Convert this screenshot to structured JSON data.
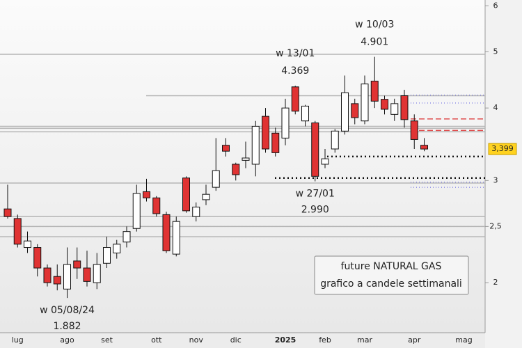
{
  "chart_data": {
    "type": "candlestick",
    "categories": [
      null,
      "lug",
      null,
      null,
      null,
      null,
      "ago",
      null,
      null,
      null,
      "set",
      null,
      null,
      null,
      null,
      "ott",
      null,
      null,
      null,
      "nov",
      null,
      null,
      null,
      "dic",
      null,
      null,
      null,
      null,
      "2025",
      null,
      null,
      null,
      "feb",
      null,
      null,
      null,
      "mar",
      null,
      null,
      null,
      null,
      "apr",
      null,
      null,
      null,
      null,
      "mag"
    ],
    "open": [
      2.68,
      2.58,
      2.3,
      2.3,
      2.12,
      2.05,
      1.95,
      2.18,
      2.12,
      2.0,
      2.16,
      2.25,
      2.35,
      2.48,
      2.87,
      2.8,
      2.62,
      2.24,
      3.03,
      2.6,
      2.78,
      2.92,
      3.45,
      3.2,
      3.25,
      3.2,
      3.87,
      3.62,
      3.55,
      4.35,
      3.8,
      3.77,
      3.2,
      3.4,
      3.65,
      4.07,
      3.8,
      4.45,
      4.14,
      3.9,
      4.2,
      3.8,
      3.45,
      null,
      null,
      null,
      null
    ],
    "high": [
      2.95,
      2.62,
      2.45,
      2.33,
      2.15,
      2.15,
      2.3,
      2.3,
      2.27,
      2.25,
      2.4,
      2.37,
      2.5,
      2.95,
      3.02,
      2.82,
      2.65,
      2.6,
      3.05,
      2.75,
      2.95,
      3.55,
      3.55,
      3.22,
      3.5,
      3.8,
      4.0,
      3.7,
      4.15,
      4.369,
      4.05,
      3.8,
      3.4,
      3.68,
      4.55,
      4.15,
      4.55,
      4.901,
      4.2,
      4.15,
      4.3,
      3.9,
      3.55,
      null,
      null,
      null,
      null
    ],
    "low": [
      2.58,
      2.3,
      2.25,
      2.05,
      1.97,
      1.94,
      1.882,
      2.03,
      1.97,
      1.95,
      2.12,
      2.2,
      2.3,
      2.45,
      2.76,
      2.6,
      2.25,
      2.22,
      2.64,
      2.55,
      2.72,
      2.88,
      3.3,
      3.0,
      3.15,
      3.05,
      3.35,
      3.3,
      3.45,
      3.9,
      3.72,
      2.99,
      3.15,
      3.35,
      3.6,
      3.75,
      3.75,
      4.0,
      3.9,
      3.8,
      3.7,
      3.4,
      3.37,
      null,
      null,
      null,
      null
    ],
    "close": [
      2.6,
      2.33,
      2.36,
      2.12,
      2.0,
      1.99,
      2.15,
      2.12,
      2.01,
      2.15,
      2.3,
      2.33,
      2.45,
      2.85,
      2.8,
      2.63,
      2.27,
      2.55,
      2.66,
      2.7,
      2.84,
      3.12,
      3.37,
      3.07,
      3.28,
      3.72,
      3.4,
      3.35,
      4.0,
      3.95,
      4.03,
      3.05,
      3.27,
      3.65,
      4.25,
      3.85,
      4.4,
      4.11,
      3.98,
      4.07,
      3.82,
      3.53,
      3.399,
      null,
      null,
      null,
      null
    ],
    "up_color": "#ffffff",
    "down_color": "#e03333",
    "log_scale": true,
    "ylim": [
      1.64,
      6.14
    ],
    "yticks": [
      2,
      {
        "value": 2.5,
        "label": "2,5"
      },
      3,
      4,
      5,
      6
    ],
    "level_lines": [
      4.95,
      4.2,
      3.72,
      3.69,
      3.64,
      2.97,
      2.6,
      2.5,
      2.4
    ],
    "dotted_lines": [
      3.3,
      3.03
    ],
    "blue_dotted_lines": [
      4.21,
      4.08,
      2.98,
      2.92
    ],
    "red_dashed_lines": [
      3.83,
      3.66
    ],
    "annotations": [
      {
        "text": "w 05/08/24",
        "value": 1.882
      },
      {
        "text": "w 13/01",
        "value": 4.369
      },
      {
        "text": "w 27/01",
        "value": 2.99,
        "value_label": "2.990"
      },
      {
        "text": "w 10/03",
        "value": 4.901
      }
    ],
    "last_price": {
      "value": 3.399,
      "label": "3,399"
    },
    "legend_lines": [
      "future NATURAL GAS",
      "grafico a candele settimanali"
    ]
  }
}
